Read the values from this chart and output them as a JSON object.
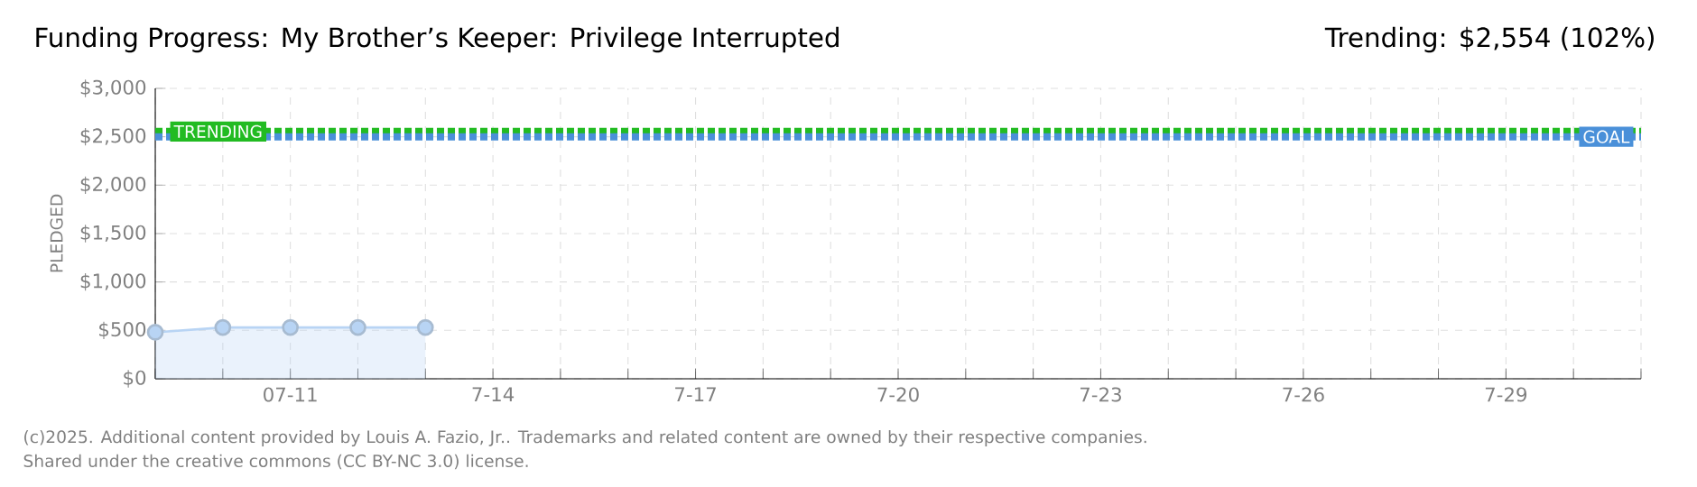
{
  "chart_data": {
    "type": "area",
    "title": "Funding Progress: My Brother’s Keeper: Privilege Interrupted",
    "subtitle": "Trending: $2,554 (102%)",
    "ylabel": "PLEDGED",
    "x": [
      "2025-07-09",
      "2025-07-10",
      "2025-07-11",
      "2025-07-12",
      "2025-07-13"
    ],
    "series": [
      {
        "color": "#b8d4f4",
        "values": [
          480,
          530,
          530,
          530,
          530
        ]
      }
    ],
    "xlim": [
      "2025-07-09",
      "2025-07-31"
    ],
    "xticks": [
      {
        "value": "2025-07-09",
        "label": null
      },
      {
        "value": "2025-07-10",
        "label": null
      },
      {
        "value": "2025-07-11",
        "label": "07-11"
      },
      {
        "value": "2025-07-12",
        "label": null
      },
      {
        "value": "2025-07-13",
        "label": null
      },
      {
        "value": "2025-07-14",
        "label": "7-14"
      },
      {
        "value": "2025-07-15",
        "label": null
      },
      {
        "value": "2025-07-16",
        "label": null
      },
      {
        "value": "2025-07-17",
        "label": "7-17"
      },
      {
        "value": "2025-07-18",
        "label": null
      },
      {
        "value": "2025-07-19",
        "label": null
      },
      {
        "value": "2025-07-20",
        "label": "7-20"
      },
      {
        "value": "2025-07-21",
        "label": null
      },
      {
        "value": "2025-07-22",
        "label": null
      },
      {
        "value": "2025-07-23",
        "label": "7-23"
      },
      {
        "value": "2025-07-24",
        "label": null
      },
      {
        "value": "2025-07-25",
        "label": null
      },
      {
        "value": "2025-07-26",
        "label": "7-26"
      },
      {
        "value": "2025-07-27",
        "label": null
      },
      {
        "value": "2025-07-28",
        "label": null
      },
      {
        "value": "2025-07-29",
        "label": "7-29"
      },
      {
        "value": "2025-07-30",
        "label": null
      },
      {
        "value": "2025-07-31",
        "label": null
      }
    ],
    "ylim": [
      0,
      3000
    ],
    "yticks": [
      {
        "value": 0,
        "label": "$0"
      },
      {
        "value": 500,
        "label": "$500"
      },
      {
        "value": 1000,
        "label": "$1,000"
      },
      {
        "value": 1500,
        "label": "$1,500"
      },
      {
        "value": 2000,
        "label": "$2,000"
      },
      {
        "value": 2500,
        "label": "$2,500"
      },
      {
        "value": 3000,
        "label": "$3,000"
      }
    ],
    "ref_lines": [
      {
        "axis": "y",
        "value": 2554,
        "label": "TRENDING",
        "color": "#22bb22",
        "line_style": "dotted"
      },
      {
        "axis": "y",
        "value": 2500,
        "label": "GOAL",
        "color": "#4a90d9",
        "line_style": "dotted"
      }
    ],
    "grid": true,
    "marker": "circle",
    "annotations": [
      "(c)2025. Additional content provided by Louis A. Fazio, Jr.. Trademarks and related content are owned by their respective companies.",
      "Shared under the creative commons (CC BY-NC 3.0) license."
    ]
  }
}
